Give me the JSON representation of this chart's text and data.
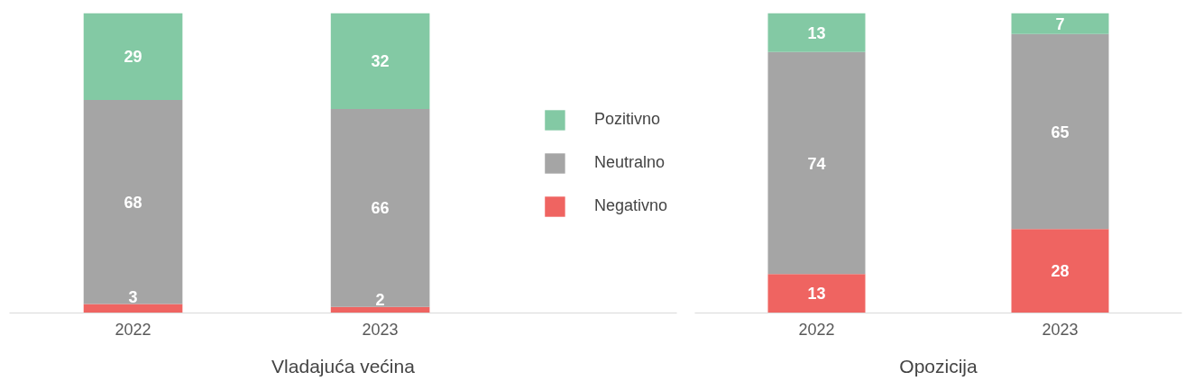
{
  "chart_data": [
    {
      "type": "bar",
      "stacked": true,
      "xlabel": "Vladajuća većina",
      "categories": [
        "2022",
        "2023"
      ],
      "ylim": [
        0,
        100
      ],
      "data_labels": true,
      "legend": "right",
      "grid": false,
      "tick_labels": "x",
      "series": [
        {
          "name": "Negativno",
          "color": "#ef6461",
          "values": [
            3,
            2
          ]
        },
        {
          "name": "Neutralno",
          "color": "#a5a5a5",
          "values": [
            68,
            66
          ]
        },
        {
          "name": "Pozitivno",
          "color": "#83c9a4",
          "values": [
            29,
            32
          ]
        }
      ]
    },
    {
      "type": "bar",
      "stacked": true,
      "xlabel": "Opozicija",
      "categories": [
        "2022",
        "2023"
      ],
      "ylim": [
        0,
        100
      ],
      "data_labels": true,
      "grid": false,
      "tick_labels": "x",
      "series": [
        {
          "color": "#ef6461",
          "values": [
            13,
            28
          ]
        },
        {
          "color": "#a5a5a5",
          "values": [
            74,
            65
          ]
        },
        {
          "color": "#83c9a4",
          "values": [
            13,
            7
          ]
        }
      ]
    }
  ]
}
